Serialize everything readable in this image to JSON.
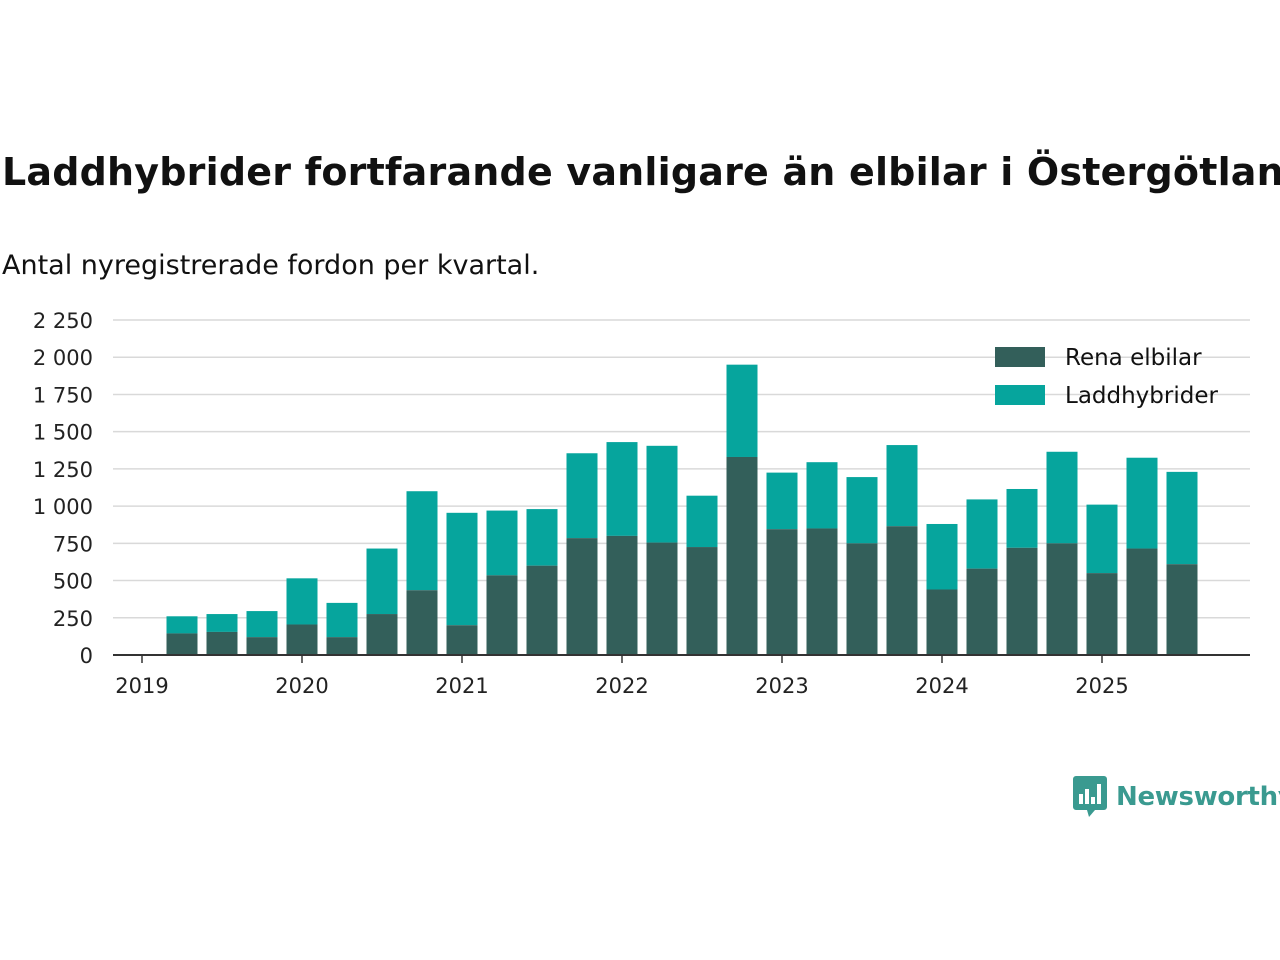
{
  "title": "Laddhybrider fortfarande vanligare än elbilar i Östergötland",
  "subtitle": "Antal nyregistrerade fordon per kvartal.",
  "brand": "Newsworthy",
  "colors": {
    "elbilar": "#335f5a",
    "laddhybrider": "#06a59d",
    "grid": "#d9d9d9",
    "axis": "#333333",
    "brand": "#3a9a90"
  },
  "chart_data": {
    "type": "bar",
    "stacked": true,
    "title": "Laddhybrider fortfarande vanligare än elbilar i Östergötland",
    "subtitle": "Antal nyregistrerade fordon per kvartal.",
    "xlabel": "",
    "ylabel": "",
    "ylim": [
      0,
      2250
    ],
    "y_ticks": [
      0,
      250,
      500,
      750,
      1000,
      1250,
      1500,
      1750,
      2000,
      2250
    ],
    "y_tick_labels": [
      "0",
      "250",
      "500",
      "750",
      "1 000",
      "1 250",
      "1 500",
      "1 750",
      "2 000",
      "2 250"
    ],
    "x_tick_labels": [
      "2019",
      "2020",
      "2021",
      "2022",
      "2023",
      "2024",
      "2025"
    ],
    "legend_position": "top-right",
    "categories": [
      "2019 Q2",
      "2019 Q3",
      "2019 Q4",
      "2020 Q1",
      "2020 Q2",
      "2020 Q3",
      "2020 Q4",
      "2021 Q1",
      "2021 Q2",
      "2021 Q3",
      "2021 Q4",
      "2022 Q1",
      "2022 Q2",
      "2022 Q3",
      "2022 Q4",
      "2023 Q1",
      "2023 Q2",
      "2023 Q3",
      "2023 Q4",
      "2024 Q1",
      "2024 Q2",
      "2024 Q3",
      "2024 Q4",
      "2025 Q1",
      "2025 Q2",
      "2025 Q3"
    ],
    "series": [
      {
        "name": "Rena elbilar",
        "values": [
          145,
          155,
          120,
          205,
          120,
          275,
          435,
          200,
          535,
          600,
          785,
          800,
          755,
          725,
          1330,
          845,
          850,
          750,
          865,
          440,
          580,
          720,
          750,
          550,
          715,
          610
        ]
      },
      {
        "name": "Laddhybrider",
        "values": [
          115,
          120,
          175,
          310,
          230,
          440,
          665,
          755,
          435,
          380,
          570,
          630,
          650,
          345,
          620,
          380,
          445,
          445,
          545,
          440,
          465,
          395,
          615,
          460,
          610,
          620
        ]
      }
    ]
  }
}
